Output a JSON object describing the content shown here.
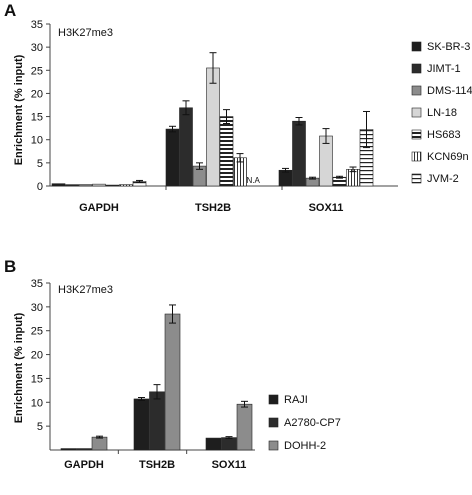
{
  "chart_data": [
    {
      "panel": "A",
      "type": "bar",
      "title": "H3K27me3",
      "ylabel": "Enrichment (% input)",
      "ylim": [
        0,
        35
      ],
      "yticks": [
        "0",
        "5",
        "10",
        "15",
        "20",
        "25",
        "30",
        "35"
      ],
      "grid": false,
      "legend_position": "right",
      "categories": [
        "GAPDH",
        "TSH2B",
        "SOX11"
      ],
      "series": [
        {
          "name": "SK-BR-3",
          "pattern": "dark",
          "values": [
            0.5,
            12.3,
            3.4
          ],
          "errors": [
            0.1,
            0.6,
            0.4
          ]
        },
        {
          "name": "JIMT-1",
          "pattern": "dark2",
          "values": [
            0.3,
            16.9,
            14.0
          ],
          "errors": [
            0.1,
            1.5,
            0.8
          ]
        },
        {
          "name": "DMS-114",
          "pattern": "grey",
          "values": [
            0.3,
            4.3,
            1.7
          ],
          "errors": [
            0.1,
            0.7,
            0.2
          ]
        },
        {
          "name": "LN-18",
          "pattern": "lightgrey",
          "values": [
            0.4,
            25.5,
            10.8
          ],
          "errors": [
            0.1,
            3.3,
            1.6
          ]
        },
        {
          "name": "HS683",
          "pattern": "hstripe",
          "values": [
            0.2,
            15.0,
            1.9
          ],
          "errors": [
            0.1,
            1.5,
            0.2
          ]
        },
        {
          "name": "KCN69n",
          "pattern": "vstripe",
          "values": [
            0.3,
            6.1,
            3.6
          ],
          "errors": [
            0.1,
            0.9,
            0.5
          ]
        },
        {
          "name": "JVM-2",
          "pattern": "hstripe2",
          "values": [
            1.0,
            null,
            12.2
          ],
          "errors": [
            0.2,
            0,
            3.9
          ]
        }
      ],
      "annotations": [
        {
          "text": "N.A",
          "category": "TSH2B",
          "series": "JVM-2"
        }
      ]
    },
    {
      "panel": "B",
      "type": "bar",
      "title": "H3K27me3",
      "ylabel": "Enrichment (% input)",
      "ylim": [
        0,
        35
      ],
      "yticks": [
        "5",
        "10",
        "15",
        "20",
        "25",
        "30",
        "35"
      ],
      "grid": false,
      "legend_position": "right",
      "categories": [
        "GAPDH",
        "TSH2B",
        "SOX11"
      ],
      "series": [
        {
          "name": "RAJI",
          "pattern": "dark",
          "values": [
            0.3,
            10.7,
            2.5
          ],
          "errors": [
            0.05,
            0.3,
            0.1
          ]
        },
        {
          "name": "A2780-CP7",
          "pattern": "dark2",
          "values": [
            0.3,
            12.2,
            2.6
          ],
          "errors": [
            0.05,
            1.5,
            0.2
          ]
        },
        {
          "name": "DOHH-2",
          "pattern": "grey",
          "values": [
            2.7,
            28.5,
            9.6
          ],
          "errors": [
            0.2,
            1.9,
            0.6
          ]
        }
      ]
    }
  ]
}
